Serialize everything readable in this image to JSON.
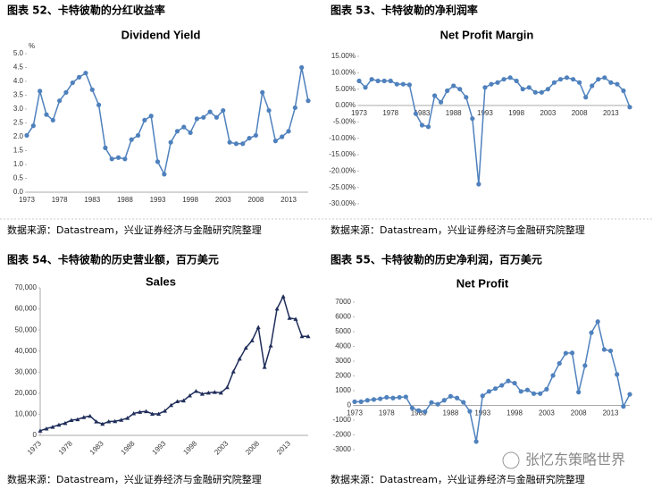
{
  "captions": [
    "图表 52、卡特彼勒的分红收益率",
    "图表 53、卡特彼勒的净利润率",
    "图表 54、卡特彼勒的历史营业额，百万美元",
    "图表 55、卡特彼勒的历史净利润，百万美元"
  ],
  "sources": [
    "数据来源：Datastream，兴业证券经济与金融研究院整理",
    "数据来源：Datastream，兴业证券经济与金融研究院整理",
    "数据来源：Datastream，兴业证券经济与金融研究院整理",
    "数据来源：Datastream，兴业证券经济与金融研究院整理"
  ],
  "watermark": "张忆东策略世界",
  "chart_data": [
    {
      "type": "line",
      "title": "Dividend Yield",
      "y_label": "%",
      "marker": "circle",
      "color": "#4f81bd",
      "categories": [
        "1973",
        null,
        null,
        null,
        null,
        "1978",
        null,
        null,
        null,
        null,
        "1983",
        null,
        null,
        null,
        null,
        "1988",
        null,
        null,
        null,
        null,
        "1993",
        null,
        null,
        null,
        null,
        "1998",
        null,
        null,
        null,
        null,
        "2003",
        null,
        null,
        null,
        null,
        "2008",
        null,
        null,
        null,
        null,
        "2013",
        null,
        null,
        null
      ],
      "values": [
        2.05,
        2.4,
        3.65,
        2.8,
        2.6,
        3.3,
        3.6,
        3.95,
        4.15,
        4.3,
        3.7,
        3.15,
        1.6,
        1.2,
        1.25,
        1.2,
        1.9,
        2.05,
        2.6,
        2.75,
        1.1,
        0.65,
        1.8,
        2.2,
        2.35,
        2.15,
        2.65,
        2.7,
        2.9,
        2.7,
        2.95,
        1.8,
        1.75,
        1.75,
        1.95,
        2.05,
        3.6,
        2.95,
        1.85,
        2.0,
        2.2,
        3.05,
        4.5,
        3.3
      ],
      "ylim": [
        0,
        5
      ],
      "yticks": [
        {
          "value": 0,
          "label": "0.0"
        },
        {
          "value": 0.5,
          "label": "0.5"
        },
        {
          "value": 1,
          "label": "1.0"
        },
        {
          "value": 1.5,
          "label": "1.5"
        },
        {
          "value": 2,
          "label": "2.0"
        },
        {
          "value": 2.5,
          "label": "2.5"
        },
        {
          "value": 3,
          "label": "3.0"
        },
        {
          "value": 3.5,
          "label": "3.5"
        },
        {
          "value": 4,
          "label": "4.0"
        },
        {
          "value": 4.5,
          "label": "4.5"
        },
        {
          "value": 5,
          "label": "5.0"
        }
      ],
      "grid": false
    },
    {
      "type": "line",
      "title": "Net Profit Margin",
      "marker": "circle",
      "color": "#4f81bd",
      "categories": [
        "1973",
        null,
        null,
        null,
        null,
        "1978",
        null,
        null,
        null,
        null,
        "1983",
        null,
        null,
        null,
        null,
        "1988",
        null,
        null,
        null,
        null,
        "1993",
        null,
        null,
        null,
        null,
        "1998",
        null,
        null,
        null,
        null,
        "2003",
        null,
        null,
        null,
        null,
        "2008",
        null,
        null,
        null,
        null,
        "2013",
        null,
        null,
        null
      ],
      "values": [
        7.5,
        5.5,
        8,
        7.5,
        7.5,
        7.5,
        6.5,
        6.5,
        6.3,
        -2.5,
        -6,
        -6.5,
        3,
        1,
        4.5,
        6,
        5,
        2.5,
        -4,
        -24,
        5.5,
        6.5,
        7,
        8,
        8.5,
        7.5,
        5,
        5.5,
        4,
        4,
        5,
        7,
        8,
        8.5,
        8,
        7,
        2.5,
        6,
        8,
        8.5,
        7,
        6.5,
        4.5,
        -0.5
      ],
      "ylim": [
        -30,
        15
      ],
      "yticks": [
        {
          "value": -30,
          "label": "-30.00%"
        },
        {
          "value": -25,
          "label": "-25.00%"
        },
        {
          "value": -20,
          "label": "-20.00%"
        },
        {
          "value": -15,
          "label": "-15.00%"
        },
        {
          "value": -10,
          "label": "-10.00%"
        },
        {
          "value": -5,
          "label": "-5.00%"
        },
        {
          "value": 0,
          "label": "0.00%"
        },
        {
          "value": 5,
          "label": "5.00%"
        },
        {
          "value": 10,
          "label": "10.00%"
        },
        {
          "value": 15,
          "label": "15.00%"
        }
      ],
      "grid": false
    },
    {
      "type": "line",
      "title": "Sales",
      "marker": "triangle",
      "color": "#1f2d5a",
      "categories": [
        "1973",
        null,
        null,
        null,
        null,
        "1978",
        null,
        null,
        null,
        null,
        "1983",
        null,
        null,
        null,
        null,
        "1988",
        null,
        null,
        null,
        null,
        "1993",
        null,
        null,
        null,
        null,
        "1998",
        null,
        null,
        null,
        null,
        "2003",
        null,
        null,
        null,
        null,
        "2008",
        null,
        null,
        null,
        null,
        "2013",
        null,
        null,
        null
      ],
      "values": [
        2200,
        3200,
        4000,
        5000,
        5800,
        7200,
        7600,
        8600,
        9200,
        6500,
        5400,
        6600,
        6700,
        7300,
        8200,
        10400,
        11100,
        11400,
        10200,
        10200,
        11600,
        14300,
        16100,
        16500,
        18900,
        21000,
        19700,
        20200,
        20500,
        20200,
        22800,
        30300,
        36300,
        41500,
        45000,
        51300,
        32400,
        42600,
        60100,
        65900,
        55700,
        55200,
        47000,
        47000
      ],
      "ylim": [
        0,
        70000
      ],
      "yticks": [
        0,
        {
          "value": 10000,
          "label": "10,000"
        },
        {
          "value": 20000,
          "label": "20,000"
        },
        {
          "value": 30000,
          "label": "30,000"
        },
        {
          "value": 40000,
          "label": "40,000"
        },
        {
          "value": 50000,
          "label": "50,000"
        },
        {
          "value": 60000,
          "label": "60,000"
        },
        {
          "value": 70000,
          "label": "70,000"
        }
      ],
      "grid": false
    },
    {
      "type": "line",
      "title": "Net Profit",
      "marker": "circle",
      "color": "#4f81bd",
      "categories": [
        "1973",
        null,
        null,
        null,
        null,
        "1978",
        null,
        null,
        null,
        null,
        "1983",
        null,
        null,
        null,
        null,
        "1988",
        null,
        null,
        null,
        null,
        "1993",
        null,
        null,
        null,
        null,
        "1998",
        null,
        null,
        null,
        null,
        "2003",
        null,
        null,
        null,
        null,
        "2008",
        null,
        null,
        null,
        null,
        "2013",
        null,
        null,
        null
      ],
      "values": [
        250,
        250,
        350,
        400,
        450,
        550,
        500,
        550,
        580,
        -180,
        -350,
        -430,
        200,
        80,
        350,
        620,
        500,
        210,
        -400,
        -2450,
        650,
        950,
        1140,
        1360,
        1660,
        1510,
        950,
        1050,
        800,
        800,
        1100,
        2030,
        2850,
        3540,
        3560,
        900,
        2700,
        4930,
        5680,
        3790,
        3700,
        2100,
        -70,
        750
      ],
      "ylim": [
        -3000,
        7000
      ],
      "yticks": [
        -3000,
        -2000,
        -1000,
        0,
        1000,
        2000,
        3000,
        4000,
        5000,
        6000,
        7000
      ],
      "grid": false
    }
  ]
}
